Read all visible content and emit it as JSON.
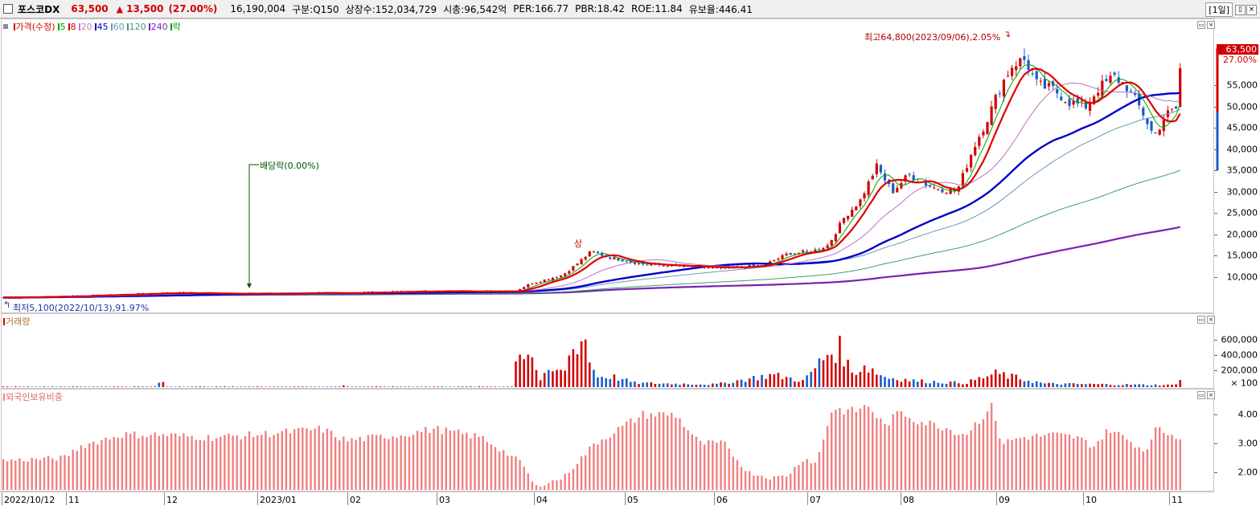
{
  "header": {
    "name": "포스코DX",
    "price": "63,500",
    "arrow": "▲",
    "change": "13,500",
    "change_pct": "(27.00%)",
    "volume": "16,190,004",
    "category": "구분:Q150",
    "shares": "상장수:152,034,729",
    "market_cap": "시총:96,542억",
    "per": "PER:166.77",
    "pbr": "PBR:18.42",
    "roe": "ROE:11.84",
    "float_ratio": "유보율:446.41",
    "period": "[1일]",
    "restore_btn": "▯",
    "close_btn": "×"
  },
  "price_pane": {
    "legend": [
      {
        "label": "가격(수정)",
        "color": "#d20000"
      },
      {
        "label": "5",
        "color": "#00a000"
      },
      {
        "label": "8",
        "color": "#d20000"
      },
      {
        "label": "20",
        "color": "#c080c0"
      },
      {
        "label": "45",
        "color": "#0000c8"
      },
      {
        "label": "60",
        "color": "#6a9ab8"
      },
      {
        "label": "120",
        "color": "#3aa070"
      },
      {
        "label": "240",
        "color": "#7a20b0"
      },
      {
        "label": "락",
        "color": "#00a000"
      }
    ],
    "y_ticks": [
      "55,000",
      "50,000",
      "45,000",
      "40,000",
      "35,000",
      "30,000",
      "25,000",
      "20,000",
      "15,000",
      "10,000"
    ],
    "current_price": "63,500",
    "current_pct": "27.00%",
    "high_annotation": "최고64,800(2023/09/06),2.05%",
    "low_annotation": "최저5,100(2022/10/13),91.97%",
    "dividend_annotation": "배당락(0.00%)",
    "event_marker": "상"
  },
  "volume_pane": {
    "legend": "거래량",
    "y_ticks": [
      "600,000",
      "400,000",
      "200,000"
    ],
    "unit": "× 100"
  },
  "foreign_pane": {
    "legend": "외국인보유비중",
    "y_ticks": [
      "4.00",
      "3.00",
      "2.00"
    ]
  },
  "x_axis": {
    "labels": [
      "2022/10/12",
      "11",
      "12",
      "2023/01",
      "02",
      "03",
      "04",
      "05",
      "06",
      "07",
      "08",
      "09",
      "10",
      "11"
    ]
  },
  "colors": {
    "up": "#d20000",
    "down": "#1a5cc8",
    "ma5": "#00a000",
    "ma8": "#e00000",
    "ma20": "#c070c0",
    "ma45": "#0000c8",
    "ma60": "#6a9ab8",
    "ma120": "#3aa070",
    "ma240": "#7a20b0",
    "foreign_bar": "#f08080"
  },
  "chart_data": [
    {
      "type": "line",
      "name": "price",
      "x": [
        "2022/10",
        "2022/11",
        "2022/12",
        "2023/01",
        "2023/02",
        "2023/03",
        "2023/04",
        "2023/05",
        "2023/06",
        "2023/07",
        "2023/08",
        "2023/09",
        "2023/10",
        "2023/11"
      ],
      "series": [
        {
          "name": "가격(수정)",
          "values": [
            5100,
            5300,
            5800,
            5600,
            5800,
            6000,
            12000,
            12500,
            11500,
            17000,
            31000,
            58000,
            52000,
            63500
          ]
        },
        {
          "name": "45",
          "values": [
            5300,
            5300,
            5500,
            5600,
            5700,
            5900,
            8500,
            10500,
            11500,
            14500,
            24000,
            40000,
            49000,
            53000
          ]
        },
        {
          "name": "240",
          "values": [
            5200,
            5300,
            5400,
            5400,
            5500,
            5600,
            6000,
            6500,
            7500,
            9000,
            11000,
            14000,
            17500,
            20500
          ]
        }
      ],
      "ylim": [
        5000,
        65000
      ],
      "high": {
        "value": 64800,
        "date": "2023/09/06"
      },
      "low": {
        "value": 5100,
        "date": "2022/10/13"
      }
    },
    {
      "type": "bar",
      "name": "volume",
      "unit": "× 100",
      "categories": [
        "2022/10",
        "2022/11",
        "2022/12",
        "2023/01",
        "2023/02",
        "2023/03",
        "2023/04",
        "2023/05",
        "2023/06",
        "2023/07",
        "2023/08",
        "2023/09",
        "2023/10",
        "2023/11"
      ],
      "values": [
        10000,
        12000,
        40000,
        8000,
        10000,
        12000,
        600000,
        150000,
        70000,
        250000,
        150000,
        200000,
        60000,
        150000
      ],
      "ylim": [
        0,
        800000
      ]
    },
    {
      "type": "bar",
      "name": "외국인보유비중",
      "categories": [
        "2022/10",
        "2022/11",
        "2022/12",
        "2023/01",
        "2023/02",
        "2023/03",
        "2023/04",
        "2023/05",
        "2023/06",
        "2023/07",
        "2023/08",
        "2023/09",
        "2023/10",
        "2023/11"
      ],
      "values": [
        2.4,
        2.9,
        3.3,
        3.4,
        3.0,
        3.5,
        1.8,
        4.0,
        2.8,
        4.2,
        4.0,
        3.3,
        3.4,
        3.2
      ],
      "ylim": [
        1.5,
        4.5
      ]
    }
  ]
}
